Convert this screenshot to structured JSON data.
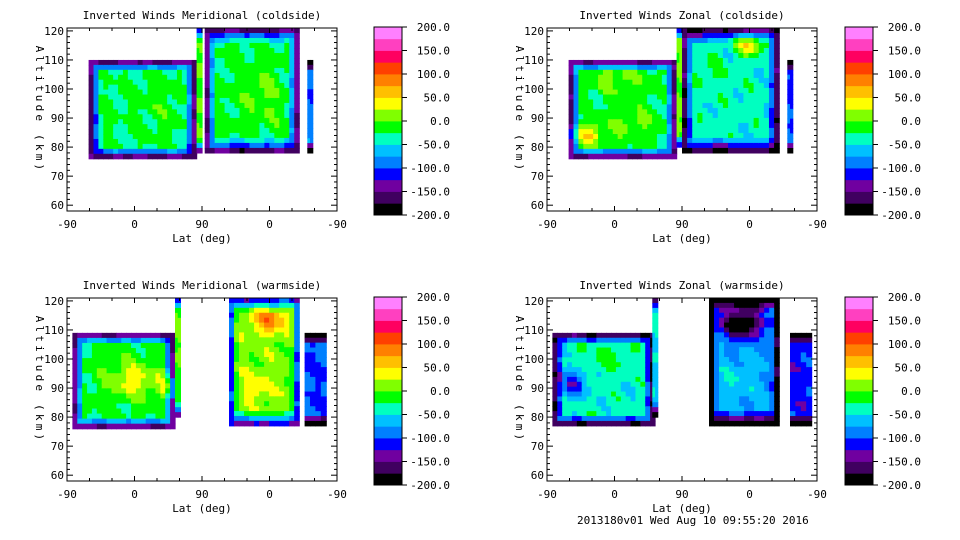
{
  "chart_data": [
    {
      "type": "heatmap",
      "title": "Inverted Winds Meridional (coldside)",
      "xlabel": "Lat (deg)",
      "ylabel": "Altitude (km)",
      "xticks": [
        "-90",
        "0",
        "90",
        "0",
        "-90"
      ],
      "yticks": [
        "60",
        "70",
        "80",
        "90",
        "100",
        "110",
        "120"
      ],
      "ylim": [
        58,
        121
      ],
      "colorbar_ticks": [
        "200.0",
        "150.0",
        "100.0",
        "50.0",
        "0.0",
        "-50.0",
        "-100.0",
        "-150.0",
        "-200.0"
      ],
      "clim": [
        -200,
        200
      ],
      "fields": [
        {
          "name": "",
          "x": [
            0.08,
            0.48
          ],
          "y": [
            76,
            110
          ],
          "base": -25,
          "blobs": [
            [
              0.35,
              95,
              0.1,
              10,
              15
            ],
            [
              0.14,
              95,
              0.05,
              8,
              5
            ]
          ]
        },
        {
          "name": "",
          "x": [
            0.48,
            0.5
          ],
          "y": [
            78,
            121
          ],
          "base": 5,
          "blobs": []
        },
        {
          "name": "",
          "x": [
            0.51,
            0.86
          ],
          "y": [
            78,
            121
          ],
          "base": -20,
          "blobs": [
            [
              0.72,
              98,
              0.07,
              10,
              25
            ],
            [
              0.66,
              80,
              0.05,
              4,
              -10
            ]
          ]
        },
        {
          "name": "",
          "x": [
            0.89,
            0.91
          ],
          "y": [
            78,
            110
          ],
          "base": -90,
          "blobs": []
        }
      ]
    },
    {
      "type": "heatmap",
      "title": "Inverted Winds Zonal (coldside)",
      "xlabel": "Lat (deg)",
      "ylabel": "Altitude (km)",
      "xticks": [
        "-90",
        "0",
        "90",
        "0",
        "-90"
      ],
      "yticks": [
        "60",
        "70",
        "80",
        "90",
        "100",
        "110",
        "120"
      ],
      "ylim": [
        58,
        121
      ],
      "colorbar_ticks": [
        "200.0",
        "150.0",
        "100.0",
        "50.0",
        "0.0",
        "-50.0",
        "-100.0",
        "-150.0",
        "-200.0"
      ],
      "clim": [
        -200,
        200
      ],
      "fields": [
        {
          "name": "",
          "x": [
            0.08,
            0.48
          ],
          "y": [
            76,
            110
          ],
          "base": -20,
          "blobs": [
            [
              0.14,
              84,
              0.06,
              4,
              70
            ],
            [
              0.32,
              88,
              0.1,
              5,
              25
            ],
            [
              0.25,
              104,
              0.1,
              5,
              30
            ]
          ]
        },
        {
          "name": "",
          "x": [
            0.48,
            0.5
          ],
          "y": [
            80,
            121
          ],
          "base": 10,
          "blobs": []
        },
        {
          "name": "",
          "x": [
            0.5,
            0.86
          ],
          "y": [
            78,
            121
          ],
          "base": -40,
          "blobs": [
            [
              0.75,
              116,
              0.05,
              4,
              100
            ],
            [
              0.6,
              105,
              0.08,
              6,
              20
            ]
          ]
        },
        {
          "name": "",
          "x": [
            0.89,
            0.91
          ],
          "y": [
            78,
            110
          ],
          "base": -100,
          "blobs": []
        }
      ]
    },
    {
      "type": "heatmap",
      "title": "Inverted Winds Meridional (warmside)",
      "xlabel": "Lat (deg)",
      "ylabel": "Altitude (km)",
      "xticks": [
        "-90",
        "0",
        "90",
        "0",
        "-90"
      ],
      "yticks": [
        "60",
        "70",
        "80",
        "90",
        "100",
        "110",
        "120"
      ],
      "ylim": [
        58,
        121
      ],
      "colorbar_ticks": [
        "200.0",
        "150.0",
        "100.0",
        "50.0",
        "0.0",
        "-50.0",
        "-100.0",
        "-150.0",
        "-200.0"
      ],
      "clim": [
        -200,
        200
      ],
      "fields": [
        {
          "name": "",
          "x": [
            0.02,
            0.4
          ],
          "y": [
            76,
            109
          ],
          "base": -20,
          "blobs": [
            [
              0.25,
              93,
              0.1,
              6,
              60
            ],
            [
              0.38,
              90,
              0.03,
              5,
              70
            ]
          ]
        },
        {
          "name": "",
          "x": [
            0.4,
            0.42
          ],
          "y": [
            80,
            121
          ],
          "base": 0,
          "blobs": []
        },
        {
          "name": "",
          "x": [
            0.6,
            0.86
          ],
          "y": [
            77,
            121
          ],
          "base": 10,
          "blobs": [
            [
              0.75,
              114,
              0.07,
              5,
              80
            ],
            [
              0.7,
              90,
              0.06,
              5,
              30
            ]
          ]
        },
        {
          "name": "",
          "x": [
            0.88,
            0.96
          ],
          "y": [
            77,
            109
          ],
          "base": -100,
          "blobs": []
        }
      ]
    },
    {
      "type": "heatmap",
      "title": "Inverted Winds Zonal (warmside)",
      "xlabel": "Lat (deg)",
      "ylabel": "Altitude (km)",
      "xticks": [
        "-90",
        "0",
        "90",
        "0",
        "-90"
      ],
      "yticks": [
        "60",
        "70",
        "80",
        "90",
        "100",
        "110",
        "120"
      ],
      "ylim": [
        58,
        121
      ],
      "colorbar_ticks": [
        "200.0",
        "150.0",
        "100.0",
        "50.0",
        "0.0",
        "-50.0",
        "-100.0",
        "-150.0",
        "-200.0"
      ],
      "clim": [
        -200,
        200
      ],
      "fields": [
        {
          "name": "",
          "x": [
            0.02,
            0.4
          ],
          "y": [
            77,
            109
          ],
          "base": -40,
          "blobs": [
            [
              0.2,
              100,
              0.1,
              5,
              20
            ],
            [
              0.1,
              92,
              0.05,
              5,
              -80
            ]
          ]
        },
        {
          "name": "",
          "x": [
            0.39,
            0.41
          ],
          "y": [
            80,
            121
          ],
          "base": -50,
          "blobs": []
        },
        {
          "name": "",
          "x": [
            0.6,
            0.86
          ],
          "y": [
            77,
            121
          ],
          "base": -70,
          "blobs": [
            [
              0.72,
              112,
              0.08,
              5,
              -150
            ],
            [
              0.7,
              92,
              0.06,
              6,
              20
            ]
          ]
        },
        {
          "name": "",
          "x": [
            0.9,
            0.98
          ],
          "y": [
            77,
            109
          ],
          "base": -110,
          "blobs": []
        }
      ]
    }
  ],
  "footer": "2013180v01 Wed Aug 10 09:55:20 2016",
  "colors": {
    "scale": [
      "#000000",
      "#400060",
      "#7000a0",
      "#0000ff",
      "#0080ff",
      "#00c0ff",
      "#00ffc0",
      "#00ff00",
      "#80ff00",
      "#ffff00",
      "#ffc000",
      "#ff8000",
      "#ff4000",
      "#ff0060",
      "#ff40c0",
      "#ff80ff"
    ]
  }
}
